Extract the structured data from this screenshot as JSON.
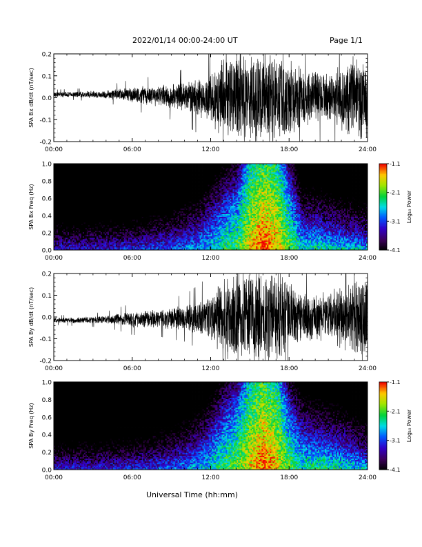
{
  "header": {
    "title": "2022/01/14  00:00-24:00 UT",
    "page_label": "Page 1/1"
  },
  "figure": {
    "xlabel": "Universal Time (hh:mm)",
    "x_tick_labels": [
      "00:00",
      "06:00",
      "12:00",
      "18:00",
      "24:00"
    ]
  },
  "chart_data": [
    {
      "type": "line",
      "ylabel": "SPA Bx dB/dt (nT/sec)",
      "xlim": [
        0,
        24
      ],
      "ylim": [
        -0.2,
        0.2
      ],
      "y_ticks": [
        -0.2,
        -0.1,
        0.0,
        0.1,
        0.2
      ],
      "y_tick_labels": [
        "-0.2",
        "-0.1",
        "0.0",
        "0.1",
        "0.2"
      ],
      "x_ticks": [
        0,
        6,
        12,
        18,
        24
      ],
      "series": [
        {
          "color": "#000000",
          "envelope": {
            "hours": [
              0,
              2,
              4,
              5,
              6,
              8,
              10,
              11,
              12,
              13,
              14,
              15,
              16,
              17,
              18,
              19,
              20,
              21,
              22,
              23,
              24
            ],
            "amplitude": [
              0.012,
              0.015,
              0.02,
              0.03,
              0.04,
              0.05,
              0.07,
              0.09,
              0.12,
              0.22,
              0.22,
              0.22,
              0.22,
              0.22,
              0.2,
              0.15,
              0.13,
              0.12,
              0.16,
              0.2,
              0.22
            ],
            "baseline": [
              0.015,
              0.015,
              0.015,
              0.015,
              0.012,
              0.01,
              0.005,
              0.0,
              0.0,
              0.0,
              0.0,
              0.0,
              0.0,
              0.0,
              0.0,
              0.0,
              0.0,
              0.0,
              0.0,
              0.0,
              0.0
            ]
          }
        }
      ]
    },
    {
      "type": "heatmap",
      "ylabel": "SPA Bx Freq (Hz)",
      "xlim": [
        0,
        24
      ],
      "ylim": [
        0.0,
        1.0
      ],
      "y_ticks": [
        0.0,
        0.2,
        0.4,
        0.6,
        0.8,
        1.0
      ],
      "y_tick_labels": [
        "0.0",
        "0.2",
        "0.4",
        "0.6",
        "0.8",
        "1.0"
      ],
      "x_ticks": [
        0,
        6,
        12,
        18,
        24
      ],
      "colorbar": {
        "label": "Log₁₀ Power",
        "range": [
          -4.1,
          -1.1
        ],
        "tick_values": [
          -1.1,
          -2.1,
          -3.1,
          -4.1
        ],
        "tick_labels": [
          "-1.1",
          "-2.1",
          "-3.1",
          "-4.1"
        ]
      },
      "power_profile": {
        "hours": [
          0,
          3,
          6,
          9,
          11,
          12,
          13,
          14,
          15,
          16,
          17,
          18,
          19,
          20,
          22,
          24
        ],
        "max_freq_hz": [
          0.25,
          0.25,
          0.25,
          0.28,
          0.35,
          0.45,
          0.55,
          0.6,
          1.0,
          1.0,
          1.0,
          0.7,
          0.35,
          0.3,
          0.25,
          0.2
        ],
        "peak_log_power": [
          -3.3,
          -3.3,
          -3.2,
          -3.0,
          -2.8,
          -2.6,
          -2.3,
          -2.1,
          -1.6,
          -1.2,
          -1.4,
          -2.0,
          -2.5,
          -2.4,
          -2.5,
          -2.6
        ]
      }
    },
    {
      "type": "line",
      "ylabel": "SPA By dB/dt (nT/sec)",
      "xlim": [
        0,
        24
      ],
      "ylim": [
        -0.2,
        0.2
      ],
      "y_ticks": [
        -0.2,
        -0.1,
        0.0,
        0.1,
        0.2
      ],
      "y_tick_labels": [
        "-0.2",
        "-0.1",
        "0.0",
        "0.1",
        "0.2"
      ],
      "x_ticks": [
        0,
        6,
        12,
        18,
        24
      ],
      "series": [
        {
          "color": "#000000",
          "envelope": {
            "hours": [
              0,
              2,
              4,
              5,
              6,
              8,
              10,
              11,
              12,
              13,
              14,
              15,
              16,
              17,
              18,
              19,
              20,
              21,
              22,
              23,
              24
            ],
            "amplitude": [
              0.012,
              0.015,
              0.02,
              0.03,
              0.04,
              0.045,
              0.06,
              0.08,
              0.11,
              0.22,
              0.22,
              0.22,
              0.22,
              0.22,
              0.18,
              0.12,
              0.11,
              0.12,
              0.16,
              0.2,
              0.2
            ],
            "baseline": [
              -0.015,
              -0.015,
              -0.012,
              -0.01,
              -0.01,
              -0.008,
              -0.005,
              0.0,
              0.0,
              0.0,
              0.0,
              0.0,
              0.0,
              0.0,
              0.0,
              0.0,
              0.0,
              0.0,
              0.0,
              0.0,
              0.0
            ]
          }
        }
      ]
    },
    {
      "type": "heatmap",
      "ylabel": "SPA By Freq (Hz)",
      "xlim": [
        0,
        24
      ],
      "ylim": [
        0.0,
        1.0
      ],
      "y_ticks": [
        0.0,
        0.2,
        0.4,
        0.6,
        0.8,
        1.0
      ],
      "y_tick_labels": [
        "0.0",
        "0.2",
        "0.4",
        "0.6",
        "0.8",
        "1.0"
      ],
      "x_ticks": [
        0,
        6,
        12,
        18,
        24
      ],
      "colorbar": {
        "label": "Log₁₀ Power",
        "range": [
          -4.1,
          -1.1
        ],
        "tick_values": [
          -1.1,
          -2.1,
          -3.1,
          -4.1
        ],
        "tick_labels": [
          "-1.1",
          "-2.1",
          "-3.1",
          "-4.1"
        ]
      },
      "power_profile": {
        "hours": [
          0,
          3,
          6,
          9,
          11,
          12,
          13,
          14,
          15,
          16,
          17,
          18,
          19,
          20,
          22,
          24
        ],
        "max_freq_hz": [
          0.25,
          0.25,
          0.25,
          0.3,
          0.35,
          0.45,
          0.6,
          0.7,
          1.0,
          1.0,
          1.0,
          0.65,
          0.45,
          0.35,
          0.3,
          0.2
        ],
        "peak_log_power": [
          -3.3,
          -3.3,
          -3.2,
          -3.0,
          -2.7,
          -2.5,
          -2.2,
          -2.0,
          -1.6,
          -1.2,
          -1.5,
          -2.1,
          -2.4,
          -2.3,
          -2.4,
          -2.6
        ]
      }
    }
  ]
}
